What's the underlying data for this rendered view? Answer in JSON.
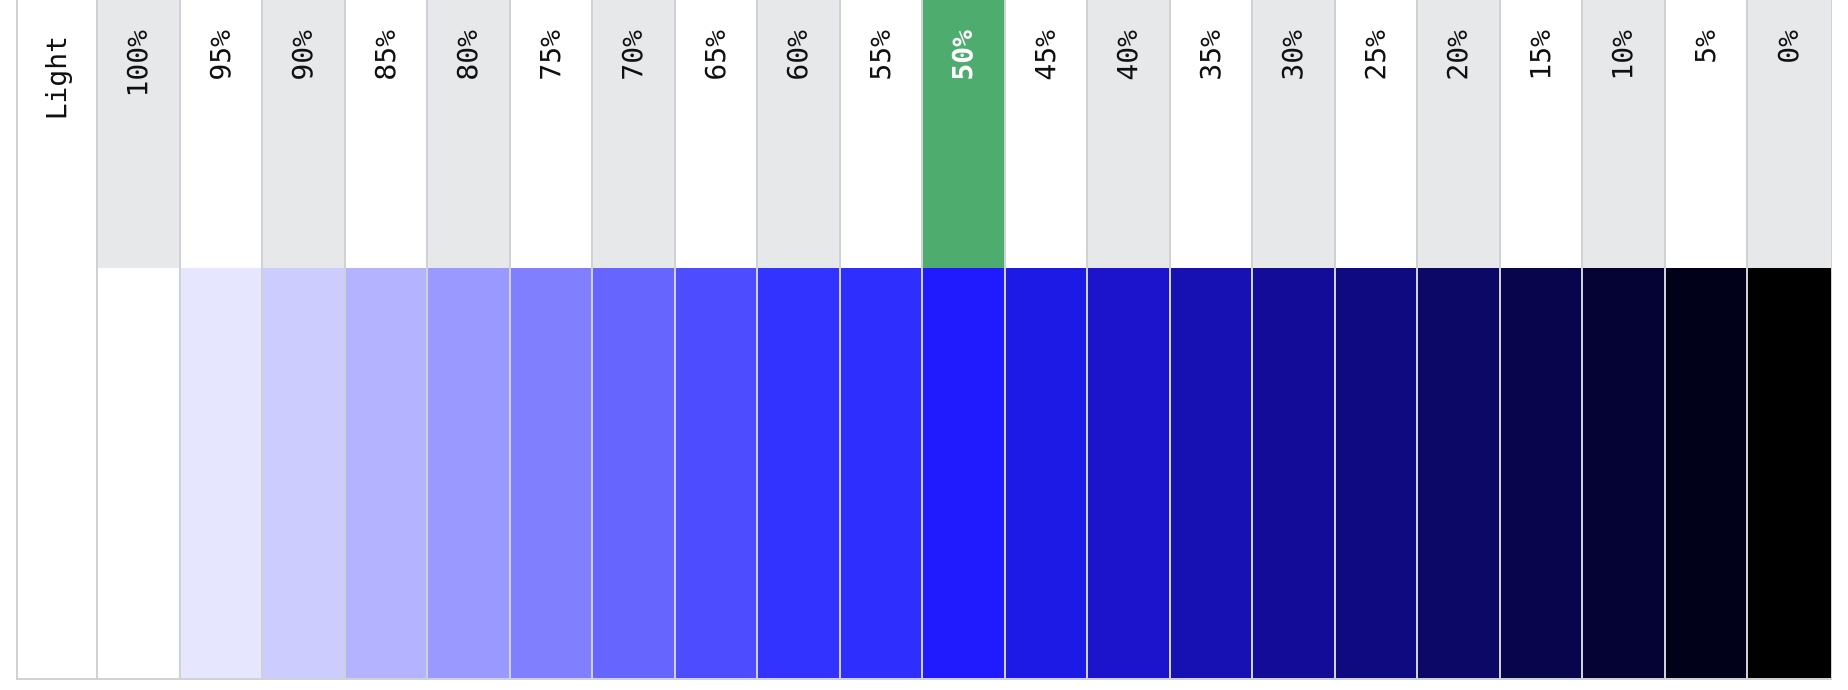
{
  "row_label": "Light",
  "selected_index": 10,
  "columns": [
    {
      "label": "100%",
      "color": "#ffffff"
    },
    {
      "label": "95%",
      "color": "#e6e6ff"
    },
    {
      "label": "90%",
      "color": "#ccccff"
    },
    {
      "label": "85%",
      "color": "#b3b3ff"
    },
    {
      "label": "80%",
      "color": "#9999ff"
    },
    {
      "label": "75%",
      "color": "#8080ff"
    },
    {
      "label": "70%",
      "color": "#6666ff"
    },
    {
      "label": "65%",
      "color": "#4d4dff"
    },
    {
      "label": "60%",
      "color": "#3333ff"
    },
    {
      "label": "55%",
      "color": "#2e2eff"
    },
    {
      "label": "50%",
      "color": "#1f1aff"
    },
    {
      "label": "45%",
      "color": "#1e1ae6"
    },
    {
      "label": "40%",
      "color": "#1c14cc"
    },
    {
      "label": "35%",
      "color": "#1711b3"
    },
    {
      "label": "30%",
      "color": "#130c99"
    },
    {
      "label": "25%",
      "color": "#0f0a80"
    },
    {
      "label": "20%",
      "color": "#0c0866"
    },
    {
      "label": "15%",
      "color": "#08054d"
    },
    {
      "label": "10%",
      "color": "#050333"
    },
    {
      "label": "5%",
      "color": "#02011a"
    },
    {
      "label": "0%",
      "color": "#000000"
    }
  ],
  "colors": {
    "selected_header": "#4ead6e",
    "header_shade": "#e7e8ea",
    "divider": "#cfd1d4"
  }
}
